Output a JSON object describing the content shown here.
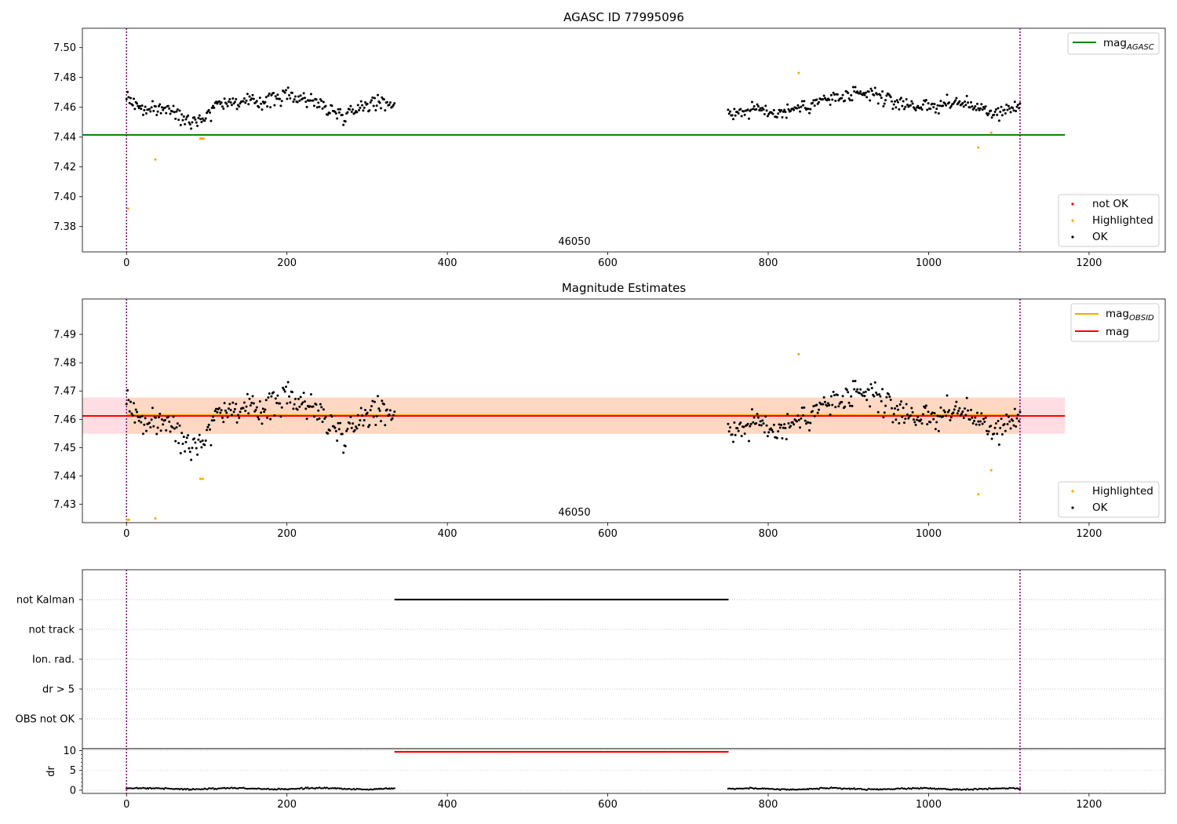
{
  "chart_data": [
    {
      "type": "scatter",
      "title": "AGASC ID 77995096",
      "xlim": [
        -55,
        1295
      ],
      "ylim": [
        7.363,
        7.513
      ],
      "x_ticks": [
        0,
        200,
        400,
        600,
        800,
        1000,
        1200
      ],
      "x_tick_labels": [
        "0",
        "200",
        "400",
        "600",
        "800",
        "1000",
        "1200"
      ],
      "y_ticks": [
        7.38,
        7.4,
        7.42,
        7.44,
        7.46,
        7.48,
        7.5
      ],
      "y_tick_labels": [
        "7.38",
        "7.40",
        "7.42",
        "7.44",
        "7.46",
        "7.48",
        "7.50"
      ],
      "obsid_label": "46050",
      "obsid_label_x": 560,
      "obsid_boundaries": [
        0,
        1114
      ],
      "colors": {
        "ok": "#000000",
        "highlighted": "#ffa500",
        "not_ok": "#ff0000",
        "mag_agasc": "#008000",
        "boundary": "#800080"
      },
      "lines": [
        {
          "name": "mag_AGASC",
          "y": 7.4415,
          "x_range": [
            -55,
            1170
          ],
          "color": "#008000"
        }
      ],
      "ok_segments": [
        {
          "x": [
            0,
            335
          ],
          "levels": [
            [
              0,
              7.467
            ],
            [
              12,
              7.462
            ],
            [
              25,
              7.457
            ],
            [
              45,
              7.46
            ],
            [
              65,
              7.455
            ],
            [
              80,
              7.452
            ],
            [
              95,
              7.452
            ],
            [
              115,
              7.464
            ],
            [
              140,
              7.463
            ],
            [
              170,
              7.464
            ],
            [
              200,
              7.468
            ],
            [
              230,
              7.465
            ],
            [
              255,
              7.458
            ],
            [
              270,
              7.455
            ],
            [
              300,
              7.463
            ],
            [
              335,
              7.463
            ]
          ]
        },
        {
          "x": [
            750,
            1114
          ],
          "levels": [
            [
              750,
              7.456
            ],
            [
              790,
              7.459
            ],
            [
              810,
              7.456
            ],
            [
              840,
              7.46
            ],
            [
              870,
              7.465
            ],
            [
              900,
              7.467
            ],
            [
              930,
              7.469
            ],
            [
              960,
              7.463
            ],
            [
              1000,
              7.46
            ],
            [
              1030,
              7.463
            ],
            [
              1055,
              7.462
            ],
            [
              1075,
              7.455
            ],
            [
              1100,
              7.459
            ],
            [
              1114,
              7.461
            ]
          ]
        }
      ],
      "highlighted_points": [
        {
          "x": 2,
          "y": 7.392
        },
        {
          "x": 36,
          "y": 7.425
        },
        {
          "x": 92,
          "y": 7.439
        },
        {
          "x": 94,
          "y": 7.439
        },
        {
          "x": 96,
          "y": 7.439
        },
        {
          "x": 838,
          "y": 7.483
        },
        {
          "x": 1062,
          "y": 7.433
        },
        {
          "x": 1078,
          "y": 7.443
        }
      ],
      "legend_lines": [
        {
          "label": "mag",
          "sub": "AGASC"
        }
      ],
      "legend_markers": [
        {
          "label": "not OK"
        },
        {
          "label": "Highlighted"
        },
        {
          "label": "OK"
        }
      ]
    },
    {
      "type": "scatter",
      "title": "Magnitude Estimates",
      "xlim": [
        -55,
        1295
      ],
      "ylim": [
        7.4235,
        7.5025
      ],
      "x_ticks": [
        0,
        200,
        400,
        600,
        800,
        1000,
        1200
      ],
      "x_tick_labels": [
        "0",
        "200",
        "400",
        "600",
        "800",
        "1000",
        "1200"
      ],
      "y_ticks": [
        7.43,
        7.44,
        7.45,
        7.46,
        7.47,
        7.48,
        7.49
      ],
      "y_tick_labels": [
        "7.43",
        "7.44",
        "7.45",
        "7.46",
        "7.47",
        "7.48",
        "7.49"
      ],
      "obsid_label": "46050",
      "obsid_label_x": 560,
      "obsid_boundaries": [
        0,
        1114
      ],
      "colors": {
        "ok": "#000000",
        "highlighted": "#ffa500",
        "mag": "#ff0000",
        "mag_obsid": "#ffa500",
        "band_outer": "#ffdde3",
        "band_inner": "#ffd8c4",
        "boundary": "#800080"
      },
      "mag": 7.4612,
      "mag_obsid": 7.4615,
      "band": {
        "outer": [
          7.4549,
          7.4677
        ],
        "outer_x": [
          -55,
          1170
        ],
        "inner_x": [
          0,
          1114
        ]
      },
      "ok_segments": [
        {
          "x": [
            0,
            335
          ],
          "levels": [
            [
              0,
              7.467
            ],
            [
              12,
              7.462
            ],
            [
              25,
              7.457
            ],
            [
              45,
              7.46
            ],
            [
              65,
              7.455
            ],
            [
              80,
              7.452
            ],
            [
              95,
              7.452
            ],
            [
              115,
              7.464
            ],
            [
              140,
              7.463
            ],
            [
              170,
              7.464
            ],
            [
              200,
              7.468
            ],
            [
              230,
              7.465
            ],
            [
              255,
              7.458
            ],
            [
              270,
              7.455
            ],
            [
              300,
              7.463
            ],
            [
              335,
              7.463
            ]
          ]
        },
        {
          "x": [
            750,
            1114
          ],
          "levels": [
            [
              750,
              7.456
            ],
            [
              790,
              7.459
            ],
            [
              810,
              7.456
            ],
            [
              840,
              7.46
            ],
            [
              870,
              7.465
            ],
            [
              900,
              7.467
            ],
            [
              930,
              7.469
            ],
            [
              960,
              7.463
            ],
            [
              1000,
              7.46
            ],
            [
              1030,
              7.463
            ],
            [
              1055,
              7.462
            ],
            [
              1075,
              7.455
            ],
            [
              1100,
              7.459
            ],
            [
              1114,
              7.461
            ]
          ]
        }
      ],
      "highlighted_points": [
        {
          "x": 1,
          "y": 7.4245
        },
        {
          "x": 3,
          "y": 7.4245
        },
        {
          "x": 36,
          "y": 7.425
        },
        {
          "x": 92,
          "y": 7.439
        },
        {
          "x": 95,
          "y": 7.439
        },
        {
          "x": 838,
          "y": 7.483
        },
        {
          "x": 1062,
          "y": 7.4335
        },
        {
          "x": 1078,
          "y": 7.442
        }
      ],
      "legend_lines": [
        {
          "label": "mag",
          "sub": "OBSID"
        },
        {
          "label": "mag",
          "sub": ""
        }
      ],
      "legend_markers": [
        {
          "label": "Highlighted"
        },
        {
          "label": "OK"
        }
      ]
    },
    {
      "type": "scatter",
      "xlim": [
        -55,
        1295
      ],
      "categories": [
        "not Kalman",
        "not track",
        "Ion. rad.",
        "dr > 5",
        "OBS not OK"
      ],
      "flag_points": [
        {
          "category": "not Kalman",
          "x_range": [
            335,
            750
          ],
          "color": "#000000"
        }
      ],
      "obsid_boundaries": [
        0,
        1114
      ],
      "colors": {
        "boundary": "#800080"
      }
    },
    {
      "type": "scatter",
      "ylabel": "dr",
      "xlim": [
        -55,
        1295
      ],
      "ylim": [
        -0.8,
        10.5
      ],
      "x_ticks": [
        0,
        200,
        400,
        600,
        800,
        1000,
        1200
      ],
      "x_tick_labels": [
        "0",
        "200",
        "400",
        "600",
        "800",
        "1000",
        "1200"
      ],
      "y_ticks": [
        0,
        5,
        10
      ],
      "y_tick_labels": [
        "0",
        "5",
        "10"
      ],
      "dr_clipped": {
        "x_range": [
          335,
          750
        ],
        "y": 9.7,
        "color": "#ff0000"
      },
      "dr_points": [
        {
          "x_range": [
            0,
            335
          ],
          "y": 0.4,
          "color": "#000000"
        },
        {
          "x_range": [
            750,
            1114
          ],
          "y": 0.35,
          "color": "#000000"
        }
      ],
      "obsid_boundaries": [
        0,
        1114
      ],
      "colors": {
        "boundary": "#800080"
      }
    }
  ]
}
